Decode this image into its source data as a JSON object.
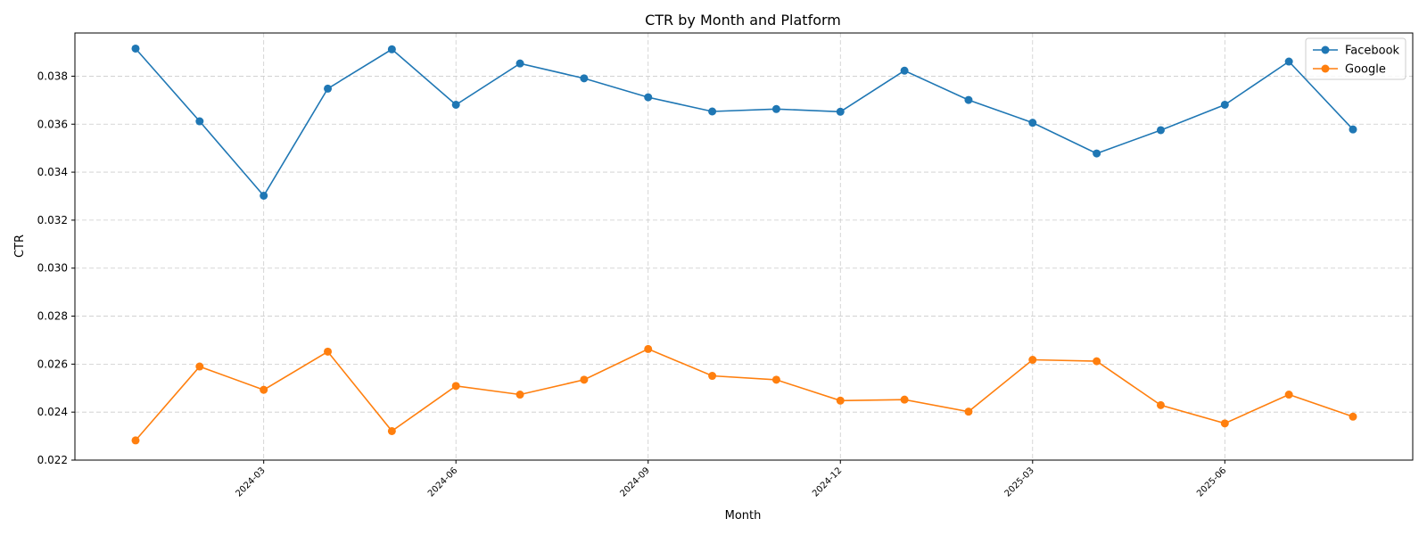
{
  "chart_data": {
    "type": "line",
    "title": "CTR by Month and Platform",
    "xlabel": "Month",
    "ylabel": "CTR",
    "ylim": [
      0.022,
      0.0398
    ],
    "yticks": [
      0.022,
      0.024,
      0.026,
      0.028,
      0.03,
      0.032,
      0.034,
      0.036,
      0.038
    ],
    "ytick_labels": [
      "0.022",
      "0.024",
      "0.026",
      "0.028",
      "0.030",
      "0.032",
      "0.034",
      "0.036",
      "0.038"
    ],
    "x": [
      "2024-01",
      "2024-02",
      "2024-03",
      "2024-04",
      "2024-05",
      "2024-06",
      "2024-07",
      "2024-08",
      "2024-09",
      "2024-10",
      "2024-11",
      "2024-12",
      "2025-01",
      "2025-02",
      "2025-03",
      "2025-04",
      "2025-05",
      "2025-06",
      "2025-07",
      "2025-08"
    ],
    "xticks": [
      "2024-03",
      "2024-06",
      "2024-09",
      "2024-12",
      "2025-03",
      "2025-06"
    ],
    "grid": true,
    "legend_position": "top-right",
    "series": [
      {
        "name": "Facebook",
        "color": "#1f77b4",
        "values": [
          0.03915,
          0.03612,
          0.03302,
          0.03748,
          0.03912,
          0.03681,
          0.03853,
          0.03791,
          0.03712,
          0.03653,
          0.03663,
          0.03652,
          0.03823,
          0.03701,
          0.03606,
          0.03478,
          0.03575,
          0.03681,
          0.03861,
          0.03578
        ]
      },
      {
        "name": "Google",
        "color": "#ff7f0e",
        "values": [
          0.02282,
          0.0259,
          0.02493,
          0.02652,
          0.02321,
          0.02509,
          0.02473,
          0.02535,
          0.02663,
          0.02551,
          0.02535,
          0.02448,
          0.02452,
          0.02402,
          0.02618,
          0.02612,
          0.02429,
          0.02353,
          0.02473,
          0.02381
        ]
      }
    ]
  }
}
